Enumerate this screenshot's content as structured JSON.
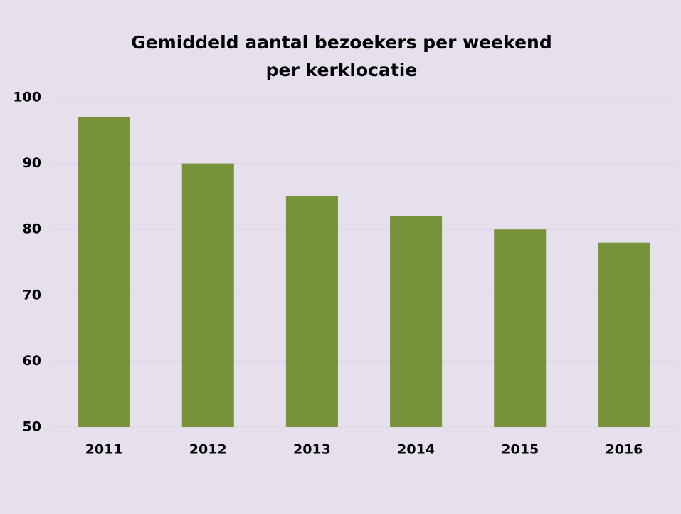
{
  "chart_data": {
    "type": "bar",
    "title": "Gemiddeld aantal bezoekers per weekend per kerklocatie",
    "categories": [
      "2011",
      "2012",
      "2013",
      "2014",
      "2015",
      "2016"
    ],
    "values": [
      97,
      90,
      85,
      82,
      80,
      78
    ],
    "color": "#77933c",
    "ylim": [
      50,
      100
    ],
    "yticks": [
      50,
      60,
      70,
      80,
      90,
      100
    ],
    "grid": true
  }
}
